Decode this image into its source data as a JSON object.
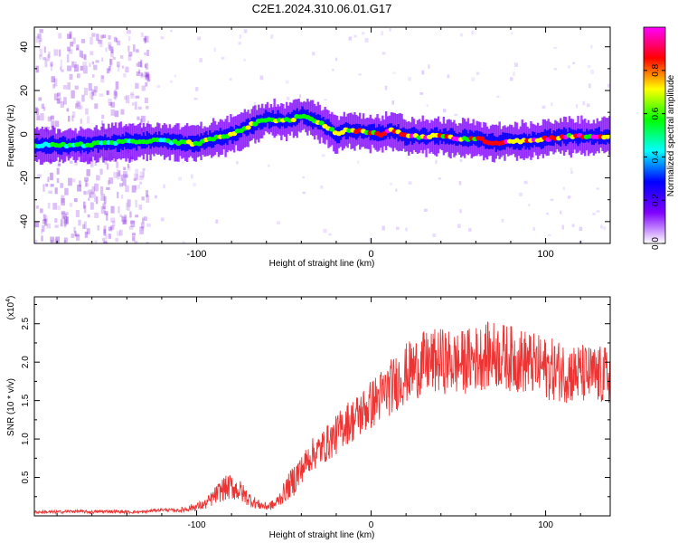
{
  "figure": {
    "title": "C2E1.2024.310.06.01.G17"
  },
  "chart_data": [
    {
      "type": "heatmap",
      "xlabel": "Height of straight line (km)",
      "ylabel": "Frequency (Hz)",
      "xlim": [
        -193,
        137
      ],
      "ylim": [
        -50,
        49
      ],
      "xticks": [
        -100,
        0,
        100
      ],
      "xtick_labels": [
        "-100",
        "0",
        "100"
      ],
      "yticks": [
        -40,
        -20,
        0,
        20,
        40
      ],
      "ytick_labels": [
        "-40",
        "-20",
        "0",
        "20",
        "40"
      ],
      "grid": false,
      "colorbar": {
        "label": "Normalized spectral amplitude",
        "range": [
          0,
          1
        ],
        "ticks": [
          0.0,
          0.2,
          0.4,
          0.6,
          0.8
        ],
        "tick_labels": [
          "0.0",
          "0.2",
          "0.4",
          "0.6",
          "0.8"
        ],
        "colormap": [
          "#ffffff",
          "#7f00ff",
          "#0000ff",
          "#00ffff",
          "#00ff00",
          "#ffff00",
          "#ff0000",
          "#ff00ff"
        ]
      },
      "ridge": {
        "x": [
          -193,
          -170,
          -150,
          -130,
          -120,
          -110,
          -100,
          -90,
          -80,
          -70,
          -60,
          -50,
          -45,
          -40,
          -35,
          -30,
          -25,
          -20,
          -15,
          -10,
          -5,
          0,
          5,
          10,
          15,
          20,
          30,
          40,
          50,
          60,
          70,
          80,
          90,
          100,
          110,
          120,
          137
        ],
        "y": [
          -5,
          -5,
          -4,
          -3,
          -3,
          -4,
          -4,
          -2,
          0,
          4,
          7,
          6,
          7,
          9,
          7,
          5,
          3,
          0,
          2,
          2,
          1,
          1,
          0,
          2,
          1,
          -1,
          -1,
          -1,
          -2,
          -2,
          -4,
          -3,
          -3,
          -2,
          -1,
          -1,
          -1
        ]
      }
    },
    {
      "type": "line",
      "xlabel": "Height of straight line (km)",
      "ylabel": "SNR (10 * v/v)",
      "multiplier": "(x10",
      "multiplier_exp": "4",
      "multiplier_close": ")",
      "xlim": [
        -193,
        137
      ],
      "ylim": [
        0,
        2.85
      ],
      "xticks": [
        -100,
        0,
        100
      ],
      "xtick_labels": [
        "-100",
        "0",
        "100"
      ],
      "yticks": [
        0.5,
        1.0,
        1.5,
        2.0,
        2.5
      ],
      "ytick_labels": [
        "0.5",
        "1.0",
        "1.5",
        "2.0",
        "2.5"
      ],
      "grid": false,
      "color": "#ee3333",
      "series": [
        {
          "x": [
            -193,
            -180,
            -170,
            -160,
            -150,
            -140,
            -130,
            -125,
            -120,
            -110,
            -100,
            -95,
            -90,
            -85,
            -80,
            -75,
            -70,
            -65,
            -60,
            -55,
            -50,
            -45,
            -40,
            -35,
            -30,
            -25,
            -20,
            -15,
            -10,
            -5,
            0,
            5,
            10,
            15,
            20,
            25,
            30,
            35,
            40,
            45,
            50,
            55,
            60,
            65,
            70,
            75,
            80,
            85,
            90,
            95,
            100,
            105,
            110,
            115,
            120,
            125,
            130,
            137
          ],
          "y": [
            0.05,
            0.05,
            0.06,
            0.05,
            0.06,
            0.05,
            0.05,
            0.07,
            0.08,
            0.07,
            0.12,
            0.15,
            0.25,
            0.35,
            0.38,
            0.32,
            0.22,
            0.15,
            0.12,
            0.15,
            0.3,
            0.45,
            0.6,
            0.78,
            0.85,
            0.95,
            1.05,
            1.2,
            1.25,
            1.35,
            1.45,
            1.55,
            1.65,
            1.75,
            1.85,
            1.92,
            1.98,
            2.0,
            2.02,
            2.0,
            1.98,
            2.02,
            2.05,
            2.08,
            2.1,
            2.08,
            2.05,
            2.02,
            2.0,
            1.95,
            1.92,
            1.9,
            1.88,
            1.85,
            1.85,
            1.83,
            1.82,
            1.82
          ]
        }
      ]
    }
  ]
}
